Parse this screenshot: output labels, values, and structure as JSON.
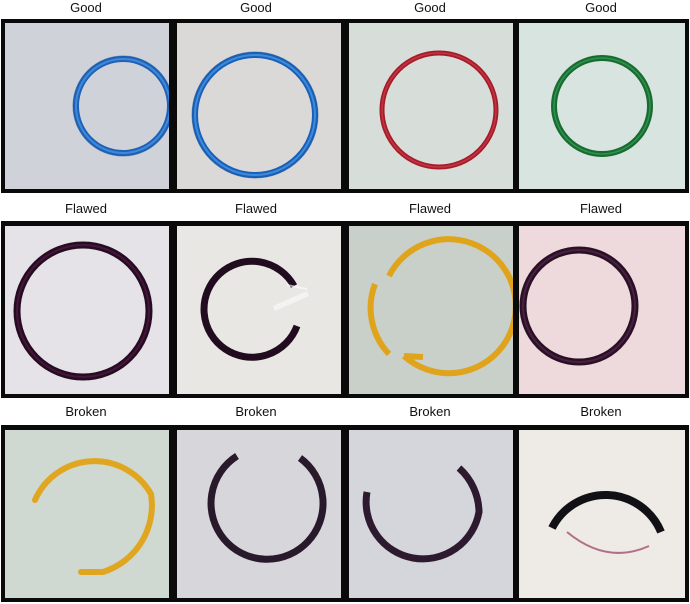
{
  "rows": [
    {
      "name": "good",
      "labels": [
        "Good",
        "Good",
        "Good",
        "Good"
      ],
      "tiles": [
        {
          "bg": "#d5d6dd",
          "ring_color": "#1f6fc7",
          "ring": "blue-ring-intact"
        },
        {
          "bg": "#d9d7d6",
          "ring_color": "#1a66c0",
          "ring": "blue-ring-intact"
        },
        {
          "bg": "#d6ddd8",
          "ring_color": "#b3202c",
          "ring": "red-ring-intact"
        },
        {
          "bg": "#d7e3de",
          "ring_color": "#1e7a3a",
          "ring": "green-ring-intact"
        }
      ]
    },
    {
      "name": "flawed",
      "labels": [
        "Flawed",
        "Flawed",
        "Flawed",
        "Flawed"
      ],
      "tiles": [
        {
          "bg": "#e4e2e6",
          "ring_color": "#2a0f24",
          "ring": "dark-ring-flawed"
        },
        {
          "bg": "#e8e6e3",
          "ring_color": "#231022",
          "ring": "dark-ring-flawed-gap"
        },
        {
          "bg": "#c8cfc8",
          "ring_color": "#e2a91f",
          "ring": "yellow-ring-flawed"
        },
        {
          "bg": "#eed9dc",
          "ring_color": "#2b1226",
          "ring": "dark-ring-flawed"
        }
      ]
    },
    {
      "name": "broken",
      "labels": [
        "Broken",
        "Broken",
        "Broken",
        "Broken"
      ],
      "tiles": [
        {
          "bg": "#cfd8d1",
          "ring_color": "#e5ac25",
          "ring": "yellow-ring-broken"
        },
        {
          "bg": "#d6d6da",
          "ring_color": "#2a1a2b",
          "ring": "dark-ring-broken"
        },
        {
          "bg": "#d4d5db",
          "ring_color": "#2e1a30",
          "ring": "dark-ring-broken"
        },
        {
          "bg": "#ede9e4",
          "ring_color": "#151012",
          "ring": "black-ring-broken"
        }
      ]
    }
  ]
}
